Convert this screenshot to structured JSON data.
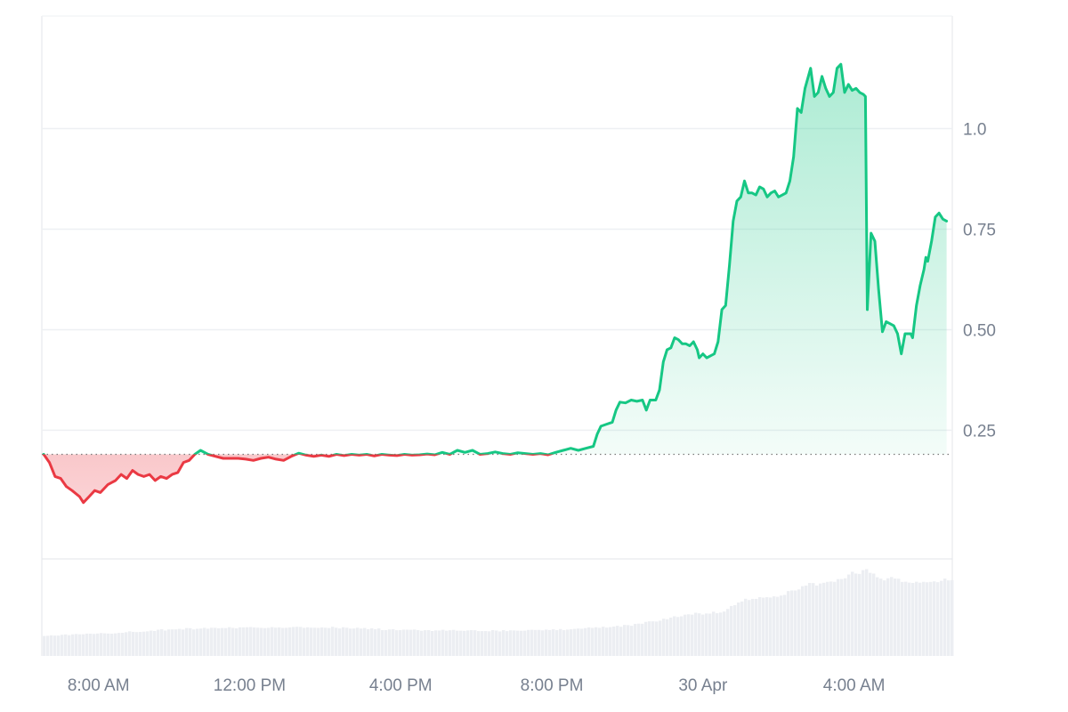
{
  "chart_data": {
    "type": "area",
    "title": "",
    "xlabel": "",
    "ylabel": "",
    "baseline": 0.19,
    "ylim": [
      -0.07,
      1.28
    ],
    "xlim": [
      6.5,
      30.6
    ],
    "grid": true,
    "y_ticks": [
      {
        "value": 0.25,
        "label": "0.25"
      },
      {
        "value": 0.5,
        "label": "0.50"
      },
      {
        "value": 0.75,
        "label": "0.75"
      },
      {
        "value": 1.0,
        "label": "1.0"
      }
    ],
    "x_ticks": [
      {
        "value": 8,
        "label": "8:00 AM"
      },
      {
        "value": 12,
        "label": "12:00 PM"
      },
      {
        "value": 16,
        "label": "4:00 PM"
      },
      {
        "value": 20,
        "label": "8:00 PM"
      },
      {
        "value": 24,
        "label": "30 Apr"
      },
      {
        "value": 28,
        "label": "4:00 AM"
      }
    ],
    "colors": {
      "up_line": "#16c784",
      "up_fill": "#16c784",
      "down_line": "#ea3943",
      "down_fill": "#ea3943",
      "grid": "#eef0f3",
      "baseline": "#7a7a7a",
      "volume": "#eceef2"
    },
    "series": [
      {
        "values": [
          [
            6.55,
            0.19
          ],
          [
            6.7,
            0.17
          ],
          [
            6.85,
            0.135
          ],
          [
            7.0,
            0.13
          ],
          [
            7.15,
            0.11
          ],
          [
            7.3,
            0.1
          ],
          [
            7.5,
            0.085
          ],
          [
            7.6,
            0.07
          ],
          [
            7.75,
            0.085
          ],
          [
            7.9,
            0.1
          ],
          [
            8.05,
            0.095
          ],
          [
            8.25,
            0.115
          ],
          [
            8.45,
            0.125
          ],
          [
            8.6,
            0.14
          ],
          [
            8.75,
            0.13
          ],
          [
            8.9,
            0.15
          ],
          [
            9.05,
            0.14
          ],
          [
            9.2,
            0.135
          ],
          [
            9.35,
            0.14
          ],
          [
            9.5,
            0.125
          ],
          [
            9.65,
            0.135
          ],
          [
            9.8,
            0.13
          ],
          [
            9.95,
            0.14
          ],
          [
            10.1,
            0.145
          ],
          [
            10.25,
            0.17
          ],
          [
            10.4,
            0.175
          ],
          [
            10.55,
            0.19
          ],
          [
            10.7,
            0.2
          ],
          [
            10.9,
            0.19
          ],
          [
            11.1,
            0.185
          ],
          [
            11.3,
            0.18
          ],
          [
            11.5,
            0.18
          ],
          [
            11.7,
            0.18
          ],
          [
            11.9,
            0.178
          ],
          [
            12.1,
            0.175
          ],
          [
            12.3,
            0.18
          ],
          [
            12.5,
            0.183
          ],
          [
            12.7,
            0.178
          ],
          [
            12.9,
            0.175
          ],
          [
            13.1,
            0.185
          ],
          [
            13.3,
            0.193
          ],
          [
            13.5,
            0.188
          ],
          [
            13.7,
            0.185
          ],
          [
            13.9,
            0.188
          ],
          [
            14.1,
            0.185
          ],
          [
            14.3,
            0.19
          ],
          [
            14.5,
            0.187
          ],
          [
            14.7,
            0.19
          ],
          [
            14.9,
            0.188
          ],
          [
            15.1,
            0.19
          ],
          [
            15.3,
            0.186
          ],
          [
            15.5,
            0.19
          ],
          [
            15.7,
            0.188
          ],
          [
            15.9,
            0.187
          ],
          [
            16.1,
            0.19
          ],
          [
            16.3,
            0.188
          ],
          [
            16.5,
            0.189
          ],
          [
            16.7,
            0.191
          ],
          [
            16.9,
            0.189
          ],
          [
            17.1,
            0.195
          ],
          [
            17.3,
            0.19
          ],
          [
            17.5,
            0.2
          ],
          [
            17.7,
            0.195
          ],
          [
            17.9,
            0.2
          ],
          [
            18.1,
            0.19
          ],
          [
            18.3,
            0.192
          ],
          [
            18.5,
            0.196
          ],
          [
            18.7,
            0.192
          ],
          [
            18.9,
            0.19
          ],
          [
            19.1,
            0.194
          ],
          [
            19.3,
            0.192
          ],
          [
            19.5,
            0.19
          ],
          [
            19.7,
            0.192
          ],
          [
            19.9,
            0.189
          ],
          [
            20.1,
            0.195
          ],
          [
            20.3,
            0.2
          ],
          [
            20.5,
            0.205
          ],
          [
            20.7,
            0.2
          ],
          [
            20.9,
            0.205
          ],
          [
            21.1,
            0.21
          ],
          [
            21.2,
            0.24
          ],
          [
            21.3,
            0.26
          ],
          [
            21.45,
            0.265
          ],
          [
            21.6,
            0.27
          ],
          [
            21.7,
            0.3
          ],
          [
            21.8,
            0.32
          ],
          [
            21.95,
            0.318
          ],
          [
            22.1,
            0.325
          ],
          [
            22.25,
            0.322
          ],
          [
            22.4,
            0.325
          ],
          [
            22.5,
            0.3
          ],
          [
            22.6,
            0.325
          ],
          [
            22.75,
            0.325
          ],
          [
            22.85,
            0.35
          ],
          [
            22.95,
            0.42
          ],
          [
            23.05,
            0.45
          ],
          [
            23.15,
            0.455
          ],
          [
            23.25,
            0.48
          ],
          [
            23.35,
            0.475
          ],
          [
            23.45,
            0.465
          ],
          [
            23.55,
            0.465
          ],
          [
            23.65,
            0.46
          ],
          [
            23.75,
            0.47
          ],
          [
            23.85,
            0.45
          ],
          [
            23.9,
            0.43
          ],
          [
            24.0,
            0.44
          ],
          [
            24.1,
            0.43
          ],
          [
            24.2,
            0.435
          ],
          [
            24.3,
            0.44
          ],
          [
            24.4,
            0.47
          ],
          [
            24.5,
            0.55
          ],
          [
            24.6,
            0.56
          ],
          [
            24.7,
            0.66
          ],
          [
            24.8,
            0.77
          ],
          [
            24.9,
            0.82
          ],
          [
            25.0,
            0.83
          ],
          [
            25.1,
            0.87
          ],
          [
            25.2,
            0.84
          ],
          [
            25.3,
            0.84
          ],
          [
            25.4,
            0.835
          ],
          [
            25.5,
            0.855
          ],
          [
            25.6,
            0.85
          ],
          [
            25.7,
            0.83
          ],
          [
            25.8,
            0.84
          ],
          [
            25.9,
            0.845
          ],
          [
            26.0,
            0.83
          ],
          [
            26.1,
            0.835
          ],
          [
            26.2,
            0.84
          ],
          [
            26.3,
            0.87
          ],
          [
            26.4,
            0.93
          ],
          [
            26.5,
            1.05
          ],
          [
            26.6,
            1.04
          ],
          [
            26.7,
            1.1
          ],
          [
            26.85,
            1.15
          ],
          [
            26.95,
            1.08
          ],
          [
            27.05,
            1.09
          ],
          [
            27.15,
            1.13
          ],
          [
            27.25,
            1.1
          ],
          [
            27.35,
            1.08
          ],
          [
            27.45,
            1.09
          ],
          [
            27.55,
            1.15
          ],
          [
            27.65,
            1.16
          ],
          [
            27.75,
            1.09
          ],
          [
            27.85,
            1.11
          ],
          [
            27.95,
            1.095
          ],
          [
            28.05,
            1.1
          ],
          [
            28.15,
            1.09
          ],
          [
            28.25,
            1.085
          ],
          [
            28.3,
            1.08
          ],
          [
            28.35,
            0.55
          ],
          [
            28.45,
            0.74
          ],
          [
            28.55,
            0.72
          ],
          [
            28.65,
            0.6
          ],
          [
            28.75,
            0.495
          ],
          [
            28.85,
            0.52
          ],
          [
            28.95,
            0.515
          ],
          [
            29.05,
            0.51
          ],
          [
            29.15,
            0.49
          ],
          [
            29.25,
            0.44
          ],
          [
            29.35,
            0.49
          ],
          [
            29.5,
            0.49
          ],
          [
            29.55,
            0.48
          ],
          [
            29.65,
            0.56
          ],
          [
            29.75,
            0.61
          ],
          [
            29.85,
            0.65
          ],
          [
            29.9,
            0.68
          ],
          [
            29.95,
            0.67
          ],
          [
            30.05,
            0.72
          ],
          [
            30.15,
            0.78
          ],
          [
            30.25,
            0.79
          ],
          [
            30.35,
            0.775
          ],
          [
            30.45,
            0.77
          ]
        ]
      }
    ],
    "volume": [
      {
        "x": 6.5,
        "v": 0.22
      },
      {
        "x": 8.0,
        "v": 0.24
      },
      {
        "x": 10.0,
        "v": 0.29
      },
      {
        "x": 12.0,
        "v": 0.31
      },
      {
        "x": 14.0,
        "v": 0.31
      },
      {
        "x": 16.0,
        "v": 0.28
      },
      {
        "x": 18.0,
        "v": 0.27
      },
      {
        "x": 20.0,
        "v": 0.28
      },
      {
        "x": 22.0,
        "v": 0.33
      },
      {
        "x": 23.0,
        "v": 0.4
      },
      {
        "x": 23.5,
        "v": 0.45
      },
      {
        "x": 24.5,
        "v": 0.47
      },
      {
        "x": 25.0,
        "v": 0.6
      },
      {
        "x": 26.0,
        "v": 0.65
      },
      {
        "x": 26.7,
        "v": 0.76
      },
      {
        "x": 27.5,
        "v": 0.82
      },
      {
        "x": 28.0,
        "v": 0.9
      },
      {
        "x": 28.3,
        "v": 0.92
      },
      {
        "x": 28.6,
        "v": 0.85
      },
      {
        "x": 29.5,
        "v": 0.8
      },
      {
        "x": 30.0,
        "v": 0.8
      },
      {
        "x": 30.6,
        "v": 0.83
      }
    ]
  }
}
